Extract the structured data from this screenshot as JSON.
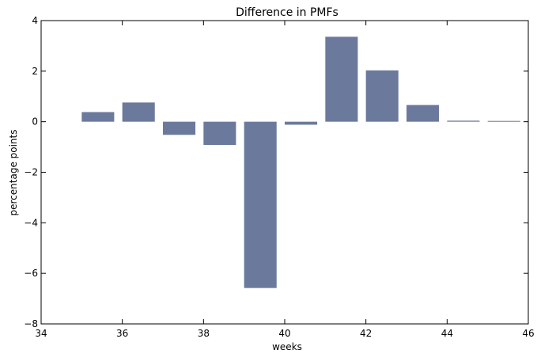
{
  "chart_data": {
    "type": "bar",
    "title": "Difference in PMFs",
    "xlabel": "weeks",
    "ylabel": "percentage points",
    "xlim": [
      34,
      46
    ],
    "ylim": [
      -8,
      4
    ],
    "xticks": [
      34,
      36,
      38,
      40,
      42,
      44,
      46
    ],
    "yticks": [
      -8,
      -6,
      -4,
      -2,
      0,
      2,
      4
    ],
    "ytick_labels": [
      "−8",
      "−6",
      "−4",
      "−2",
      "0",
      "2",
      "4"
    ],
    "bar_width": 0.8,
    "color": "#6b7a9c",
    "grid": false,
    "legend": "none",
    "bars": [
      {
        "x": 35,
        "value": 0.38
      },
      {
        "x": 36,
        "value": 0.76
      },
      {
        "x": 37,
        "value": -0.52
      },
      {
        "x": 38,
        "value": -0.92
      },
      {
        "x": 39,
        "value": -6.58
      },
      {
        "x": 40,
        "value": -0.12
      },
      {
        "x": 41,
        "value": 3.36
      },
      {
        "x": 42,
        "value": 2.03
      },
      {
        "x": 43,
        "value": 0.66
      },
      {
        "x": 44,
        "value": 0.04
      },
      {
        "x": 45,
        "value": 0.03
      }
    ]
  }
}
